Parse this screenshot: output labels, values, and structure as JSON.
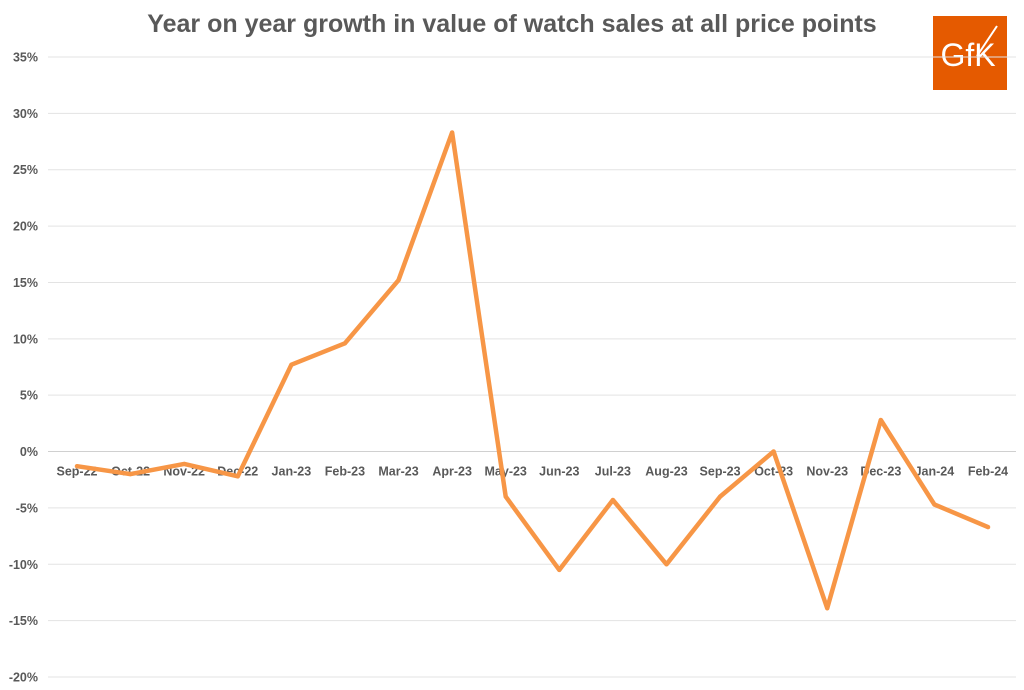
{
  "logo": {
    "text": "GfK",
    "color": "#e55a00"
  },
  "chart_data": {
    "type": "line",
    "title": "Year on year growth in value of watch sales at all price points",
    "xlabel": "",
    "ylabel": "",
    "ylim": [
      -20,
      35
    ],
    "yticks": [
      35,
      30,
      25,
      20,
      15,
      10,
      5,
      0,
      -5,
      -10,
      -15,
      -20
    ],
    "ytick_labels": [
      "35%",
      "30%",
      "25%",
      "20%",
      "15%",
      "10%",
      "5%",
      "0%",
      "-5%",
      "-10%",
      "-15%",
      "-20%"
    ],
    "grid": true,
    "legend": "none",
    "line_color": "#f79646",
    "categories": [
      "Sep-22",
      "Oct-22",
      "Nov-22",
      "Dec-22",
      "Jan-23",
      "Feb-23",
      "Mar-23",
      "Apr-23",
      "May-23",
      "Jun-23",
      "Jul-23",
      "Aug-23",
      "Sep-23",
      "Oct-23",
      "Nov-23",
      "Dec-23",
      "Jan-24",
      "Feb-24"
    ],
    "values": [
      -1.3,
      -2.0,
      -1.1,
      -2.2,
      7.7,
      9.6,
      15.2,
      28.3,
      -4.0,
      -10.5,
      -4.3,
      -10.0,
      -4.0,
      0.0,
      -13.9,
      2.8,
      -4.7,
      -6.7
    ]
  }
}
